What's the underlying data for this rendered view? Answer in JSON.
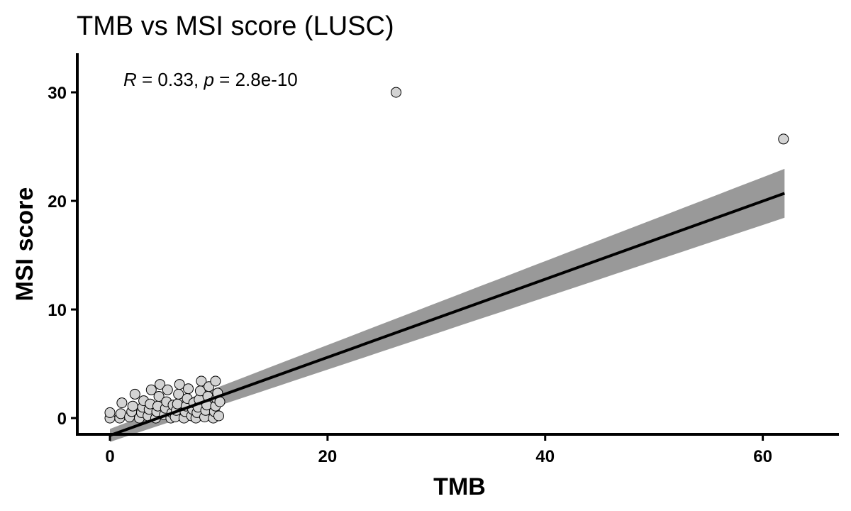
{
  "chart_data": {
    "type": "scatter",
    "title": "TMB vs MSI score (LUSC)",
    "xlabel": "TMB",
    "ylabel": "MSI score",
    "xlim": [
      -3,
      67
    ],
    "ylim": [
      -1.5,
      33.6
    ],
    "xticks": [
      "0",
      "20",
      "40",
      "60"
    ],
    "yticks": [
      "0",
      "10",
      "20",
      "30"
    ],
    "annotation": {
      "r_label": "R",
      "r_value": " = 0.33, ",
      "p_label": "p",
      "p_value": " = 2.8e-10"
    },
    "regression": {
      "x_start": 0,
      "y_start": -1.6,
      "x_end": 62,
      "y_end": 20.7,
      "ci_start": 0.6,
      "ci_end": 2.25
    },
    "colors": {
      "point_fill": "#d3d3d3",
      "point_stroke": "#000000",
      "line": "#000000",
      "band": "#999999"
    },
    "points": [
      {
        "x": 0,
        "y": 0
      },
      {
        "x": 0,
        "y": 0.5
      },
      {
        "x": 0.9,
        "y": 0
      },
      {
        "x": 1,
        "y": 0.4
      },
      {
        "x": 1.1,
        "y": 1.4
      },
      {
        "x": 1.8,
        "y": 0.1
      },
      {
        "x": 2,
        "y": 0.6
      },
      {
        "x": 2.1,
        "y": 1.1
      },
      {
        "x": 2.3,
        "y": 2.2
      },
      {
        "x": 2.7,
        "y": 0
      },
      {
        "x": 2.9,
        "y": 0.5
      },
      {
        "x": 3,
        "y": 1
      },
      {
        "x": 3.1,
        "y": 1.6
      },
      {
        "x": 3.5,
        "y": 0.2
      },
      {
        "x": 3.6,
        "y": 0.8
      },
      {
        "x": 3.7,
        "y": 1.3
      },
      {
        "x": 3.8,
        "y": 2.6
      },
      {
        "x": 4.2,
        "y": 0
      },
      {
        "x": 4.3,
        "y": 0.6
      },
      {
        "x": 4.4,
        "y": 1.1
      },
      {
        "x": 4.5,
        "y": 2
      },
      {
        "x": 4.6,
        "y": 3.1
      },
      {
        "x": 5,
        "y": 0.3
      },
      {
        "x": 5.1,
        "y": 0.9
      },
      {
        "x": 5.2,
        "y": 1.5
      },
      {
        "x": 5.3,
        "y": 2.6
      },
      {
        "x": 5.6,
        "y": 0
      },
      {
        "x": 5.7,
        "y": 0.5
      },
      {
        "x": 5.8,
        "y": 1.2
      },
      {
        "x": 6,
        "y": 0.1
      },
      {
        "x": 6.1,
        "y": 0.7
      },
      {
        "x": 6.2,
        "y": 1.3
      },
      {
        "x": 6.3,
        "y": 2.2
      },
      {
        "x": 6.4,
        "y": 3.1
      },
      {
        "x": 6.8,
        "y": 0
      },
      {
        "x": 6.9,
        "y": 0.6
      },
      {
        "x": 7,
        "y": 1.1
      },
      {
        "x": 7.1,
        "y": 1.8
      },
      {
        "x": 7.2,
        "y": 2.7
      },
      {
        "x": 7.5,
        "y": 0.2
      },
      {
        "x": 7.6,
        "y": 0.8
      },
      {
        "x": 7.7,
        "y": 1.4
      },
      {
        "x": 7.9,
        "y": 0
      },
      {
        "x": 8,
        "y": 0.5
      },
      {
        "x": 8.1,
        "y": 1
      },
      {
        "x": 8.2,
        "y": 1.7
      },
      {
        "x": 8.3,
        "y": 2.5
      },
      {
        "x": 8.4,
        "y": 3.4
      },
      {
        "x": 8.7,
        "y": 0.1
      },
      {
        "x": 8.8,
        "y": 0.7
      },
      {
        "x": 8.9,
        "y": 1.2
      },
      {
        "x": 9,
        "y": 2
      },
      {
        "x": 9.1,
        "y": 2.9
      },
      {
        "x": 9.5,
        "y": 0
      },
      {
        "x": 9.6,
        "y": 0.6
      },
      {
        "x": 9.7,
        "y": 1.1
      },
      {
        "x": 9.8,
        "y": 1.8
      },
      {
        "x": 9.9,
        "y": 2.3
      },
      {
        "x": 9.7,
        "y": 3.4
      },
      {
        "x": 10,
        "y": 0.2
      },
      {
        "x": 10.1,
        "y": 1.5
      },
      {
        "x": 26.3,
        "y": 30
      },
      {
        "x": 61.9,
        "y": 25.7
      }
    ]
  }
}
